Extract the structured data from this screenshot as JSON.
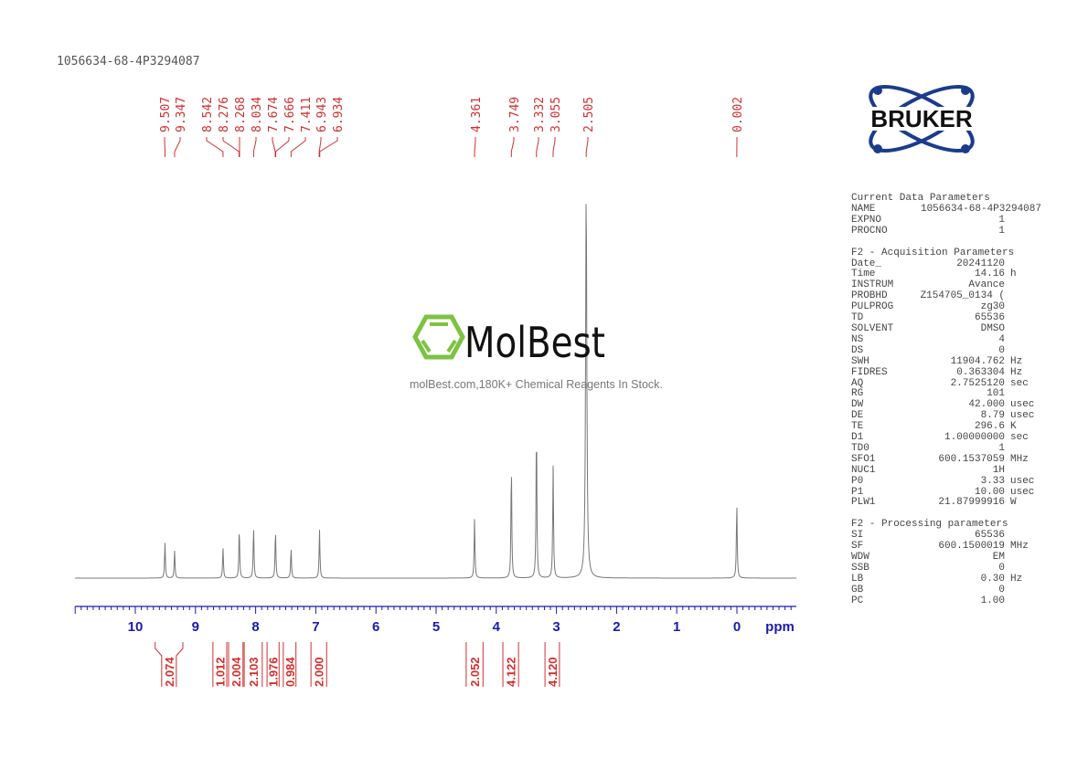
{
  "title": "1056634-68-4P3294087",
  "watermark": {
    "brand": "MolBest",
    "tagline": "molBest.com,180K+ Chemical Reagents In Stock.",
    "color": "#7dc242"
  },
  "logo": {
    "text": "BRUKER",
    "color": "#1a3c8c"
  },
  "colors": {
    "spectrum": "#777777",
    "axis": "#1a1ab0",
    "labels": "#d03030"
  },
  "parameters": [
    {
      "heading": "Current Data Parameters",
      "rows": [
        [
          "NAME",
          "1056634-68-4P3294087",
          ""
        ],
        [
          "EXPNO",
          "1",
          ""
        ],
        [
          "PROCNO",
          "1",
          ""
        ]
      ]
    },
    {
      "heading": "F2 - Acquisition Parameters",
      "rows": [
        [
          "Date_",
          "20241120",
          ""
        ],
        [
          "Time",
          "14.16",
          "h"
        ],
        [
          "INSTRUM",
          "Avance",
          ""
        ],
        [
          "PROBHD",
          "Z154705_0134 (",
          ""
        ],
        [
          "PULPROG",
          "zg30",
          ""
        ],
        [
          "TD",
          "65536",
          ""
        ],
        [
          "SOLVENT",
          "DMSO",
          ""
        ],
        [
          "NS",
          "4",
          ""
        ],
        [
          "DS",
          "0",
          ""
        ],
        [
          "SWH",
          "11904.762",
          "Hz"
        ],
        [
          "FIDRES",
          "0.363304",
          "Hz"
        ],
        [
          "AQ",
          "2.7525120",
          "sec"
        ],
        [
          "RG",
          "101",
          ""
        ],
        [
          "DW",
          "42.000",
          "usec"
        ],
        [
          "DE",
          "8.79",
          "usec"
        ],
        [
          "TE",
          "296.6",
          "K"
        ],
        [
          "D1",
          "1.00000000",
          "sec"
        ],
        [
          "TD0",
          "1",
          ""
        ],
        [
          "SFO1",
          "600.1537059",
          "MHz"
        ],
        [
          "NUC1",
          "1H",
          ""
        ],
        [
          "P0",
          "3.33",
          "usec"
        ],
        [
          "P1",
          "10.00",
          "usec"
        ],
        [
          "PLW1",
          "21.87999916",
          "W"
        ]
      ]
    },
    {
      "heading": "F2 - Processing parameters",
      "rows": [
        [
          "SI",
          "65536",
          ""
        ],
        [
          "SF",
          "600.1500019",
          "MHz"
        ],
        [
          "WDW",
          "EM",
          ""
        ],
        [
          "SSB",
          "0",
          ""
        ],
        [
          "LB",
          "0.30",
          "Hz"
        ],
        [
          "GB",
          "0",
          ""
        ],
        [
          "PC",
          "1.00",
          ""
        ]
      ]
    }
  ],
  "chart_data": {
    "type": "line",
    "xlabel": "ppm",
    "xlim": [
      11.0,
      -1.0
    ],
    "x_ticks": [
      "10",
      "9",
      "8",
      "7",
      "6",
      "5",
      "4",
      "3",
      "2",
      "1",
      "0"
    ],
    "peak_labels": [
      "9.507",
      "9.347",
      "8.542",
      "8.276",
      "8.268",
      "8.034",
      "7.674",
      "7.666",
      "7.411",
      "6.943",
      "6.934",
      "4.361",
      "3.749",
      "3.332",
      "3.055",
      "2.505",
      "0.002"
    ],
    "peaks": [
      {
        "ppm": 9.507,
        "intensity": 39
      },
      {
        "ppm": 9.347,
        "intensity": 30
      },
      {
        "ppm": 8.542,
        "intensity": 33
      },
      {
        "ppm": 8.272,
        "intensity": 55
      },
      {
        "ppm": 8.034,
        "intensity": 56
      },
      {
        "ppm": 7.67,
        "intensity": 53
      },
      {
        "ppm": 7.411,
        "intensity": 33
      },
      {
        "ppm": 6.938,
        "intensity": 53
      },
      {
        "ppm": 4.361,
        "intensity": 65
      },
      {
        "ppm": 3.749,
        "intensity": 124
      },
      {
        "ppm": 3.332,
        "intensity": 168
      },
      {
        "ppm": 3.055,
        "intensity": 123
      },
      {
        "ppm": 2.505,
        "intensity": 429
      },
      {
        "ppm": 0.002,
        "intensity": 82
      }
    ],
    "integrals": [
      {
        "from": 9.67,
        "to": 9.21,
        "value": "2.074"
      },
      {
        "from": 8.71,
        "to": 8.48,
        "value": "1.012"
      },
      {
        "from": 8.45,
        "to": 8.21,
        "value": "2.004"
      },
      {
        "from": 8.19,
        "to": 7.89,
        "value": "2.103"
      },
      {
        "from": 7.81,
        "to": 7.61,
        "value": "1.976"
      },
      {
        "from": 7.54,
        "to": 7.33,
        "value": "0.984"
      },
      {
        "from": 7.08,
        "to": 6.82,
        "value": "2.000"
      },
      {
        "from": 4.5,
        "to": 4.22,
        "value": "2.052"
      },
      {
        "from": 3.89,
        "to": 3.63,
        "value": "4.122"
      },
      {
        "from": 3.19,
        "to": 2.95,
        "value": "4.120"
      }
    ]
  }
}
